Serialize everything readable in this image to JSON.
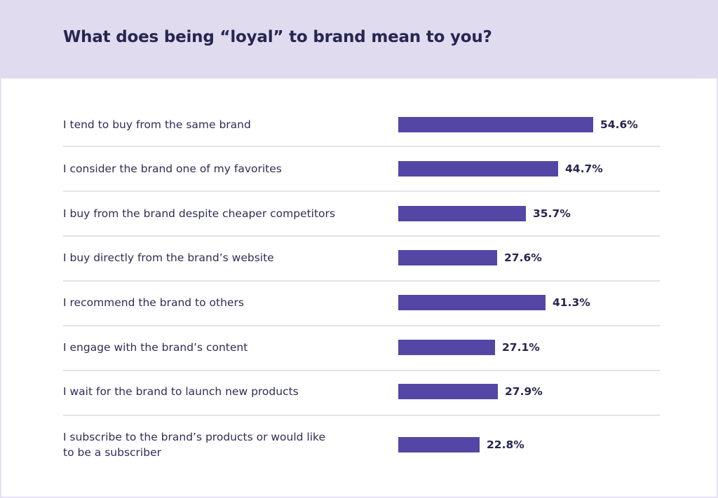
{
  "chart_data": {
    "type": "bar",
    "orientation": "horizontal",
    "title": "What does being “loyal” to brand mean to you?",
    "xlabel": "",
    "ylabel": "",
    "xlim": [
      0,
      100
    ],
    "grid": false,
    "legend": "none",
    "bar_color": "#5346a4",
    "categories": [
      "I tend to buy from the same brand",
      "I consider the brand one of my favorites",
      "I buy from the brand despite cheaper competitors",
      "I buy directly from the brand’s website",
      "I recommend the brand to others",
      "I engage with the brand’s content",
      "I wait for the brand to launch new products",
      "I subscribe to the brand’s products or would like to be a subscriber"
    ],
    "label_lines": [
      [
        "I tend to buy from the same brand"
      ],
      [
        "I consider the brand one of my favorites"
      ],
      [
        "I buy from the brand despite cheaper competitors"
      ],
      [
        "I buy directly from the brand’s website"
      ],
      [
        "I recommend the brand to others"
      ],
      [
        "I engage with the brand’s content"
      ],
      [
        "I wait for the brand to launch new products"
      ],
      [
        "I subscribe to the brand’s products or would like",
        "to be a subscriber"
      ]
    ],
    "values": [
      54.6,
      44.7,
      35.7,
      27.6,
      41.3,
      27.1,
      27.9,
      22.8
    ],
    "value_labels": [
      "54.6%",
      "44.7%",
      "35.7%",
      "27.6%",
      "41.3%",
      "27.1%",
      "27.9%",
      "22.8%"
    ]
  },
  "colors": {
    "header_bg": "#e0dbef",
    "title": "#262650",
    "bar": "#5346a4",
    "divider": "#e3e3e8"
  }
}
